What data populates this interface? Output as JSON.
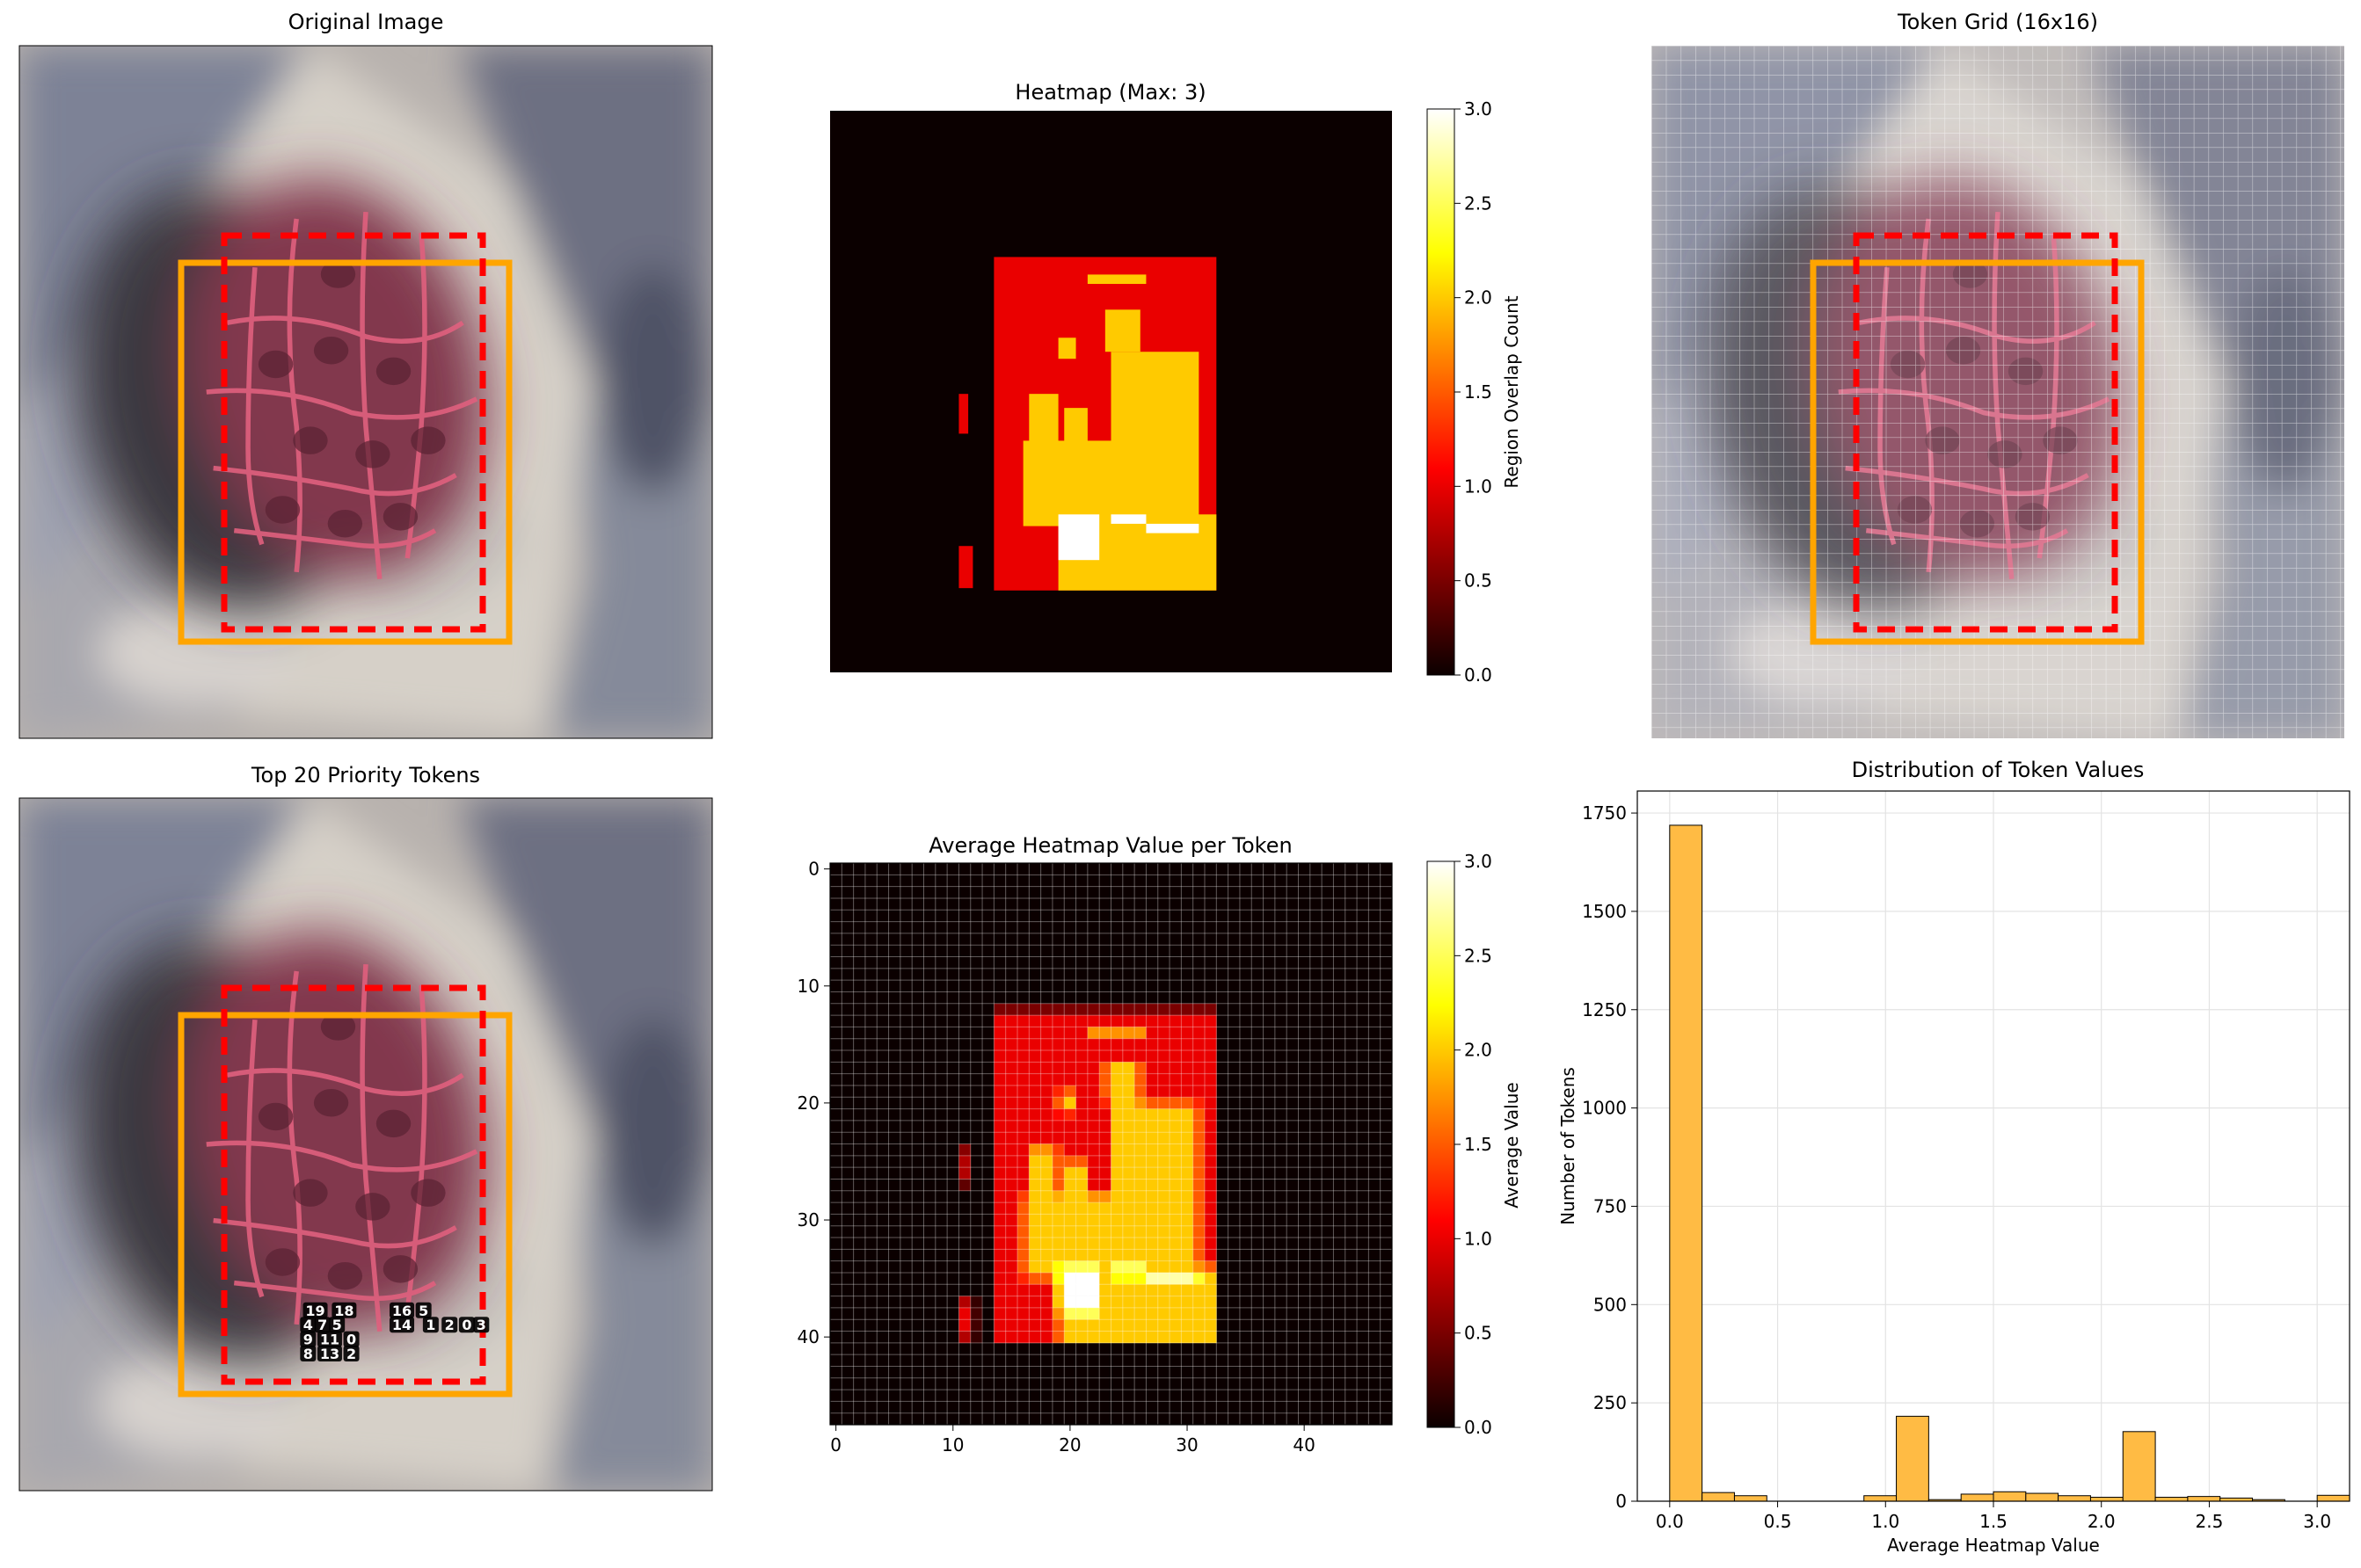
{
  "colors": {
    "orange_box": "#ffa500",
    "red_box": "#ff0000",
    "hist_bar": "#ffbb44",
    "heat_low": "#0b0000",
    "heat_high": "#ffffff"
  },
  "icons": {
    "photo": "rock-organism-photo"
  },
  "panels": {
    "original": {
      "title": "Original Image"
    },
    "heatmap": {
      "title": "Heatmap (Max: 3)",
      "colorbar_label": "Region Overlap Count",
      "colorbar_ticks": [
        "0.0",
        "0.5",
        "1.0",
        "1.5",
        "2.0",
        "2.5",
        "3.0"
      ]
    },
    "grid": {
      "title": "Token Grid (16x16)"
    },
    "priority": {
      "title": "Top 20 Priority Tokens",
      "token_labels": [
        {
          "text": "19",
          "col": 20.5,
          "row": 35.5
        },
        {
          "text": "18",
          "col": 22.5,
          "row": 35.5
        },
        {
          "text": "16",
          "col": 26.5,
          "row": 35.5
        },
        {
          "text": "5",
          "col": 28,
          "row": 35.5
        },
        {
          "text": "4",
          "col": 20,
          "row": 36.5
        },
        {
          "text": "7",
          "col": 21,
          "row": 36.5
        },
        {
          "text": "5",
          "col": 22,
          "row": 36.5
        },
        {
          "text": "14",
          "col": 26.5,
          "row": 36.5
        },
        {
          "text": "1",
          "col": 28.5,
          "row": 36.5
        },
        {
          "text": "2",
          "col": 29.8,
          "row": 36.5
        },
        {
          "text": "0",
          "col": 31,
          "row": 36.5
        },
        {
          "text": "3",
          "col": 32,
          "row": 36.5
        },
        {
          "text": "9",
          "col": 20,
          "row": 37.5
        },
        {
          "text": "11",
          "col": 21.5,
          "row": 37.5
        },
        {
          "text": "0",
          "col": 23,
          "row": 37.5
        },
        {
          "text": "8",
          "col": 20,
          "row": 38.5
        },
        {
          "text": "13",
          "col": 21.5,
          "row": 38.5
        },
        {
          "text": "2",
          "col": 23,
          "row": 38.5
        }
      ]
    },
    "avgmap": {
      "title": "Average Heatmap Value per Token",
      "colorbar_label": "Average Value",
      "colorbar_ticks": [
        "0.0",
        "0.5",
        "1.0",
        "1.5",
        "2.0",
        "2.5",
        "3.0"
      ],
      "xticks": [
        "0",
        "10",
        "20",
        "30",
        "40"
      ],
      "yticks": [
        "0",
        "10",
        "20",
        "30",
        "40"
      ]
    },
    "hist": {
      "title": "Distribution of Token Values",
      "xlabel": "Average Heatmap Value",
      "ylabel": "Number of Tokens"
    }
  },
  "chart_data": [
    {
      "type": "heatmap",
      "title": "Heatmap (Max: 3)",
      "grid_size": [
        48,
        48
      ],
      "value_range": [
        0,
        3
      ],
      "colorbar_label": "Region Overlap Count",
      "regions": [
        {
          "c0": 14,
          "c1": 33,
          "r0": 12.5,
          "r1": 41,
          "v": 1
        },
        {
          "c0": 22,
          "c1": 27,
          "r0": 14,
          "r1": 14.8,
          "v": 2
        },
        {
          "c0": 23.5,
          "c1": 26.5,
          "r0": 17,
          "r1": 20.6,
          "v": 2
        },
        {
          "c0": 19.5,
          "c1": 21,
          "r0": 19.4,
          "r1": 21.2,
          "v": 2
        },
        {
          "c0": 24,
          "c1": 31.5,
          "r0": 20.6,
          "r1": 34.6,
          "v": 2
        },
        {
          "c0": 17,
          "c1": 19.5,
          "r0": 24.2,
          "r1": 28.4,
          "v": 2
        },
        {
          "c0": 20,
          "c1": 22,
          "r0": 25.4,
          "r1": 28.4,
          "v": 2
        },
        {
          "c0": 16.5,
          "c1": 24,
          "r0": 28.2,
          "r1": 35.5,
          "v": 2
        },
        {
          "c0": 19.5,
          "c1": 33,
          "r0": 34.5,
          "r1": 41,
          "v": 2
        },
        {
          "c0": 19.5,
          "c1": 23,
          "r0": 34.5,
          "r1": 38.4,
          "v": 3
        },
        {
          "c0": 24,
          "c1": 27,
          "r0": 34.5,
          "r1": 35.3,
          "v": 3
        },
        {
          "c0": 27,
          "c1": 31.5,
          "r0": 35.3,
          "r1": 36.1,
          "v": 3
        },
        {
          "c0": 11,
          "c1": 11.8,
          "r0": 24.2,
          "r1": 27.6,
          "v": 1
        },
        {
          "c0": 11,
          "c1": 12.2,
          "r0": 37.2,
          "r1": 40.8,
          "v": 1
        }
      ]
    },
    {
      "type": "heatmap",
      "title": "Average Heatmap Value per Token",
      "grid_size": [
        48,
        48
      ],
      "value_range": [
        0,
        3
      ],
      "colorbar_label": "Average Value",
      "xlim": [
        -0.5,
        47.5
      ],
      "ylim": [
        47.5,
        -0.5
      ],
      "source": "cell-averaged overlap counts of the heatmap regions"
    },
    {
      "type": "bar",
      "title": "Distribution of Token Values",
      "xlabel": "Average Heatmap Value",
      "ylabel": "Number of Tokens",
      "bin_width": 0.15,
      "bin_start": 0,
      "values": [
        1719,
        22,
        14,
        0,
        0,
        0,
        14,
        216,
        4,
        18,
        24,
        20,
        14,
        10,
        177,
        10,
        12,
        8,
        4,
        0,
        15
      ],
      "xlim": [
        -0.15,
        3.15
      ],
      "ylim": [
        0,
        1806
      ],
      "xticks": [
        0.0,
        0.5,
        1.0,
        1.5,
        2.0,
        2.5,
        3.0
      ],
      "yticks": [
        0,
        250,
        500,
        750,
        1000,
        1250,
        1500,
        1750
      ],
      "grid": true
    }
  ]
}
